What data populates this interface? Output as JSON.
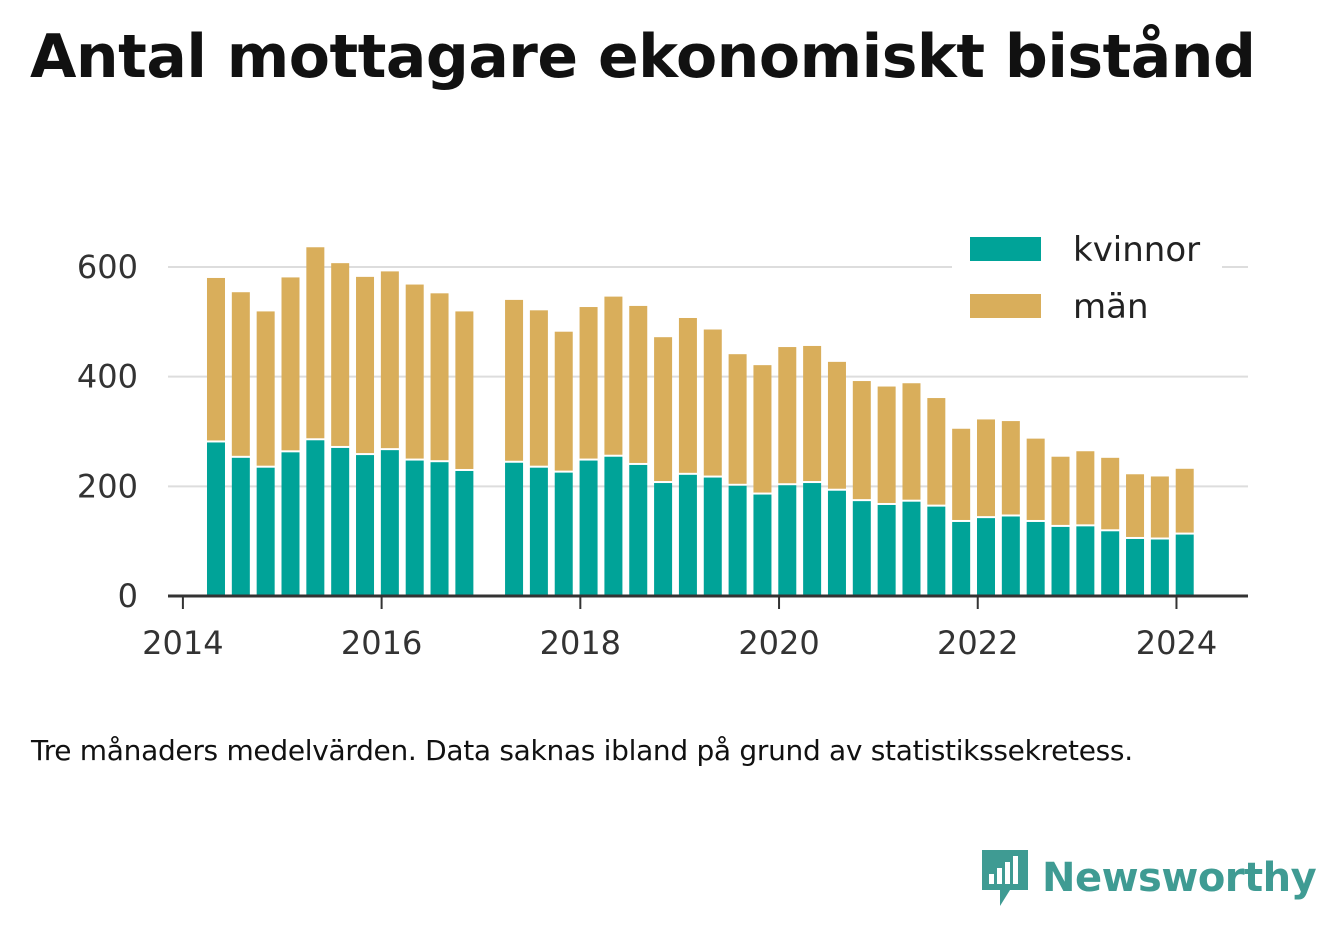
{
  "title": "Antal mottagare ekonomiskt bistånd",
  "note": "Tre månaders medelvärden. Data saknas ibland på grund av statistikssekretess.",
  "brand": {
    "name": "Newsworthy",
    "icon": "newsworthy-logo-icon"
  },
  "colors": {
    "kvinnor": "#00a398",
    "man": "#d9ae5b",
    "grid": "#dddddd",
    "axis": "#333333"
  },
  "chart_data": {
    "type": "bar",
    "stacked": true,
    "x": [
      2014.333,
      2014.583,
      2014.833,
      2015.083,
      2015.333,
      2015.583,
      2015.833,
      2016.083,
      2016.333,
      2016.583,
      2016.833,
      2017.333,
      2017.583,
      2017.833,
      2018.083,
      2018.333,
      2018.583,
      2018.833,
      2019.083,
      2019.333,
      2019.583,
      2019.833,
      2020.083,
      2020.333,
      2020.583,
      2020.833,
      2021.083,
      2021.333,
      2021.583,
      2021.833,
      2022.083,
      2022.333,
      2022.583,
      2022.833,
      2023.083,
      2023.333,
      2023.583,
      2023.833,
      2024.083
    ],
    "series": [
      {
        "name": "kvinnor",
        "values": [
          280,
          252,
          234,
          262,
          284,
          270,
          257,
          266,
          247,
          244,
          228,
          243,
          234,
          225,
          247,
          254,
          239,
          206,
          221,
          216,
          201,
          185,
          202,
          206,
          192,
          173,
          166,
          172,
          163,
          135,
          142,
          145,
          135,
          126,
          127,
          118,
          104,
          103,
          112
        ]
      },
      {
        "name": "män",
        "values": [
          300,
          302,
          285,
          319,
          352,
          337,
          325,
          326,
          321,
          308,
          291,
          297,
          287,
          257,
          280,
          292,
          290,
          266,
          286,
          270,
          240,
          236,
          252,
          250,
          235,
          219,
          216,
          216,
          198,
          170,
          180,
          174,
          152,
          128,
          137,
          134,
          118,
          115,
          120
        ]
      }
    ],
    "xticks": [
      "2014",
      "2016",
      "2018",
      "2020",
      "2022",
      "2024"
    ],
    "yticks": [
      "0",
      "200",
      "400",
      "600"
    ],
    "xlim": [
      2013.85,
      2024.72
    ],
    "ylim": [
      0,
      680
    ],
    "grid": true,
    "legend": {
      "position": "top-right",
      "entries": [
        "kvinnor",
        "män"
      ]
    }
  }
}
